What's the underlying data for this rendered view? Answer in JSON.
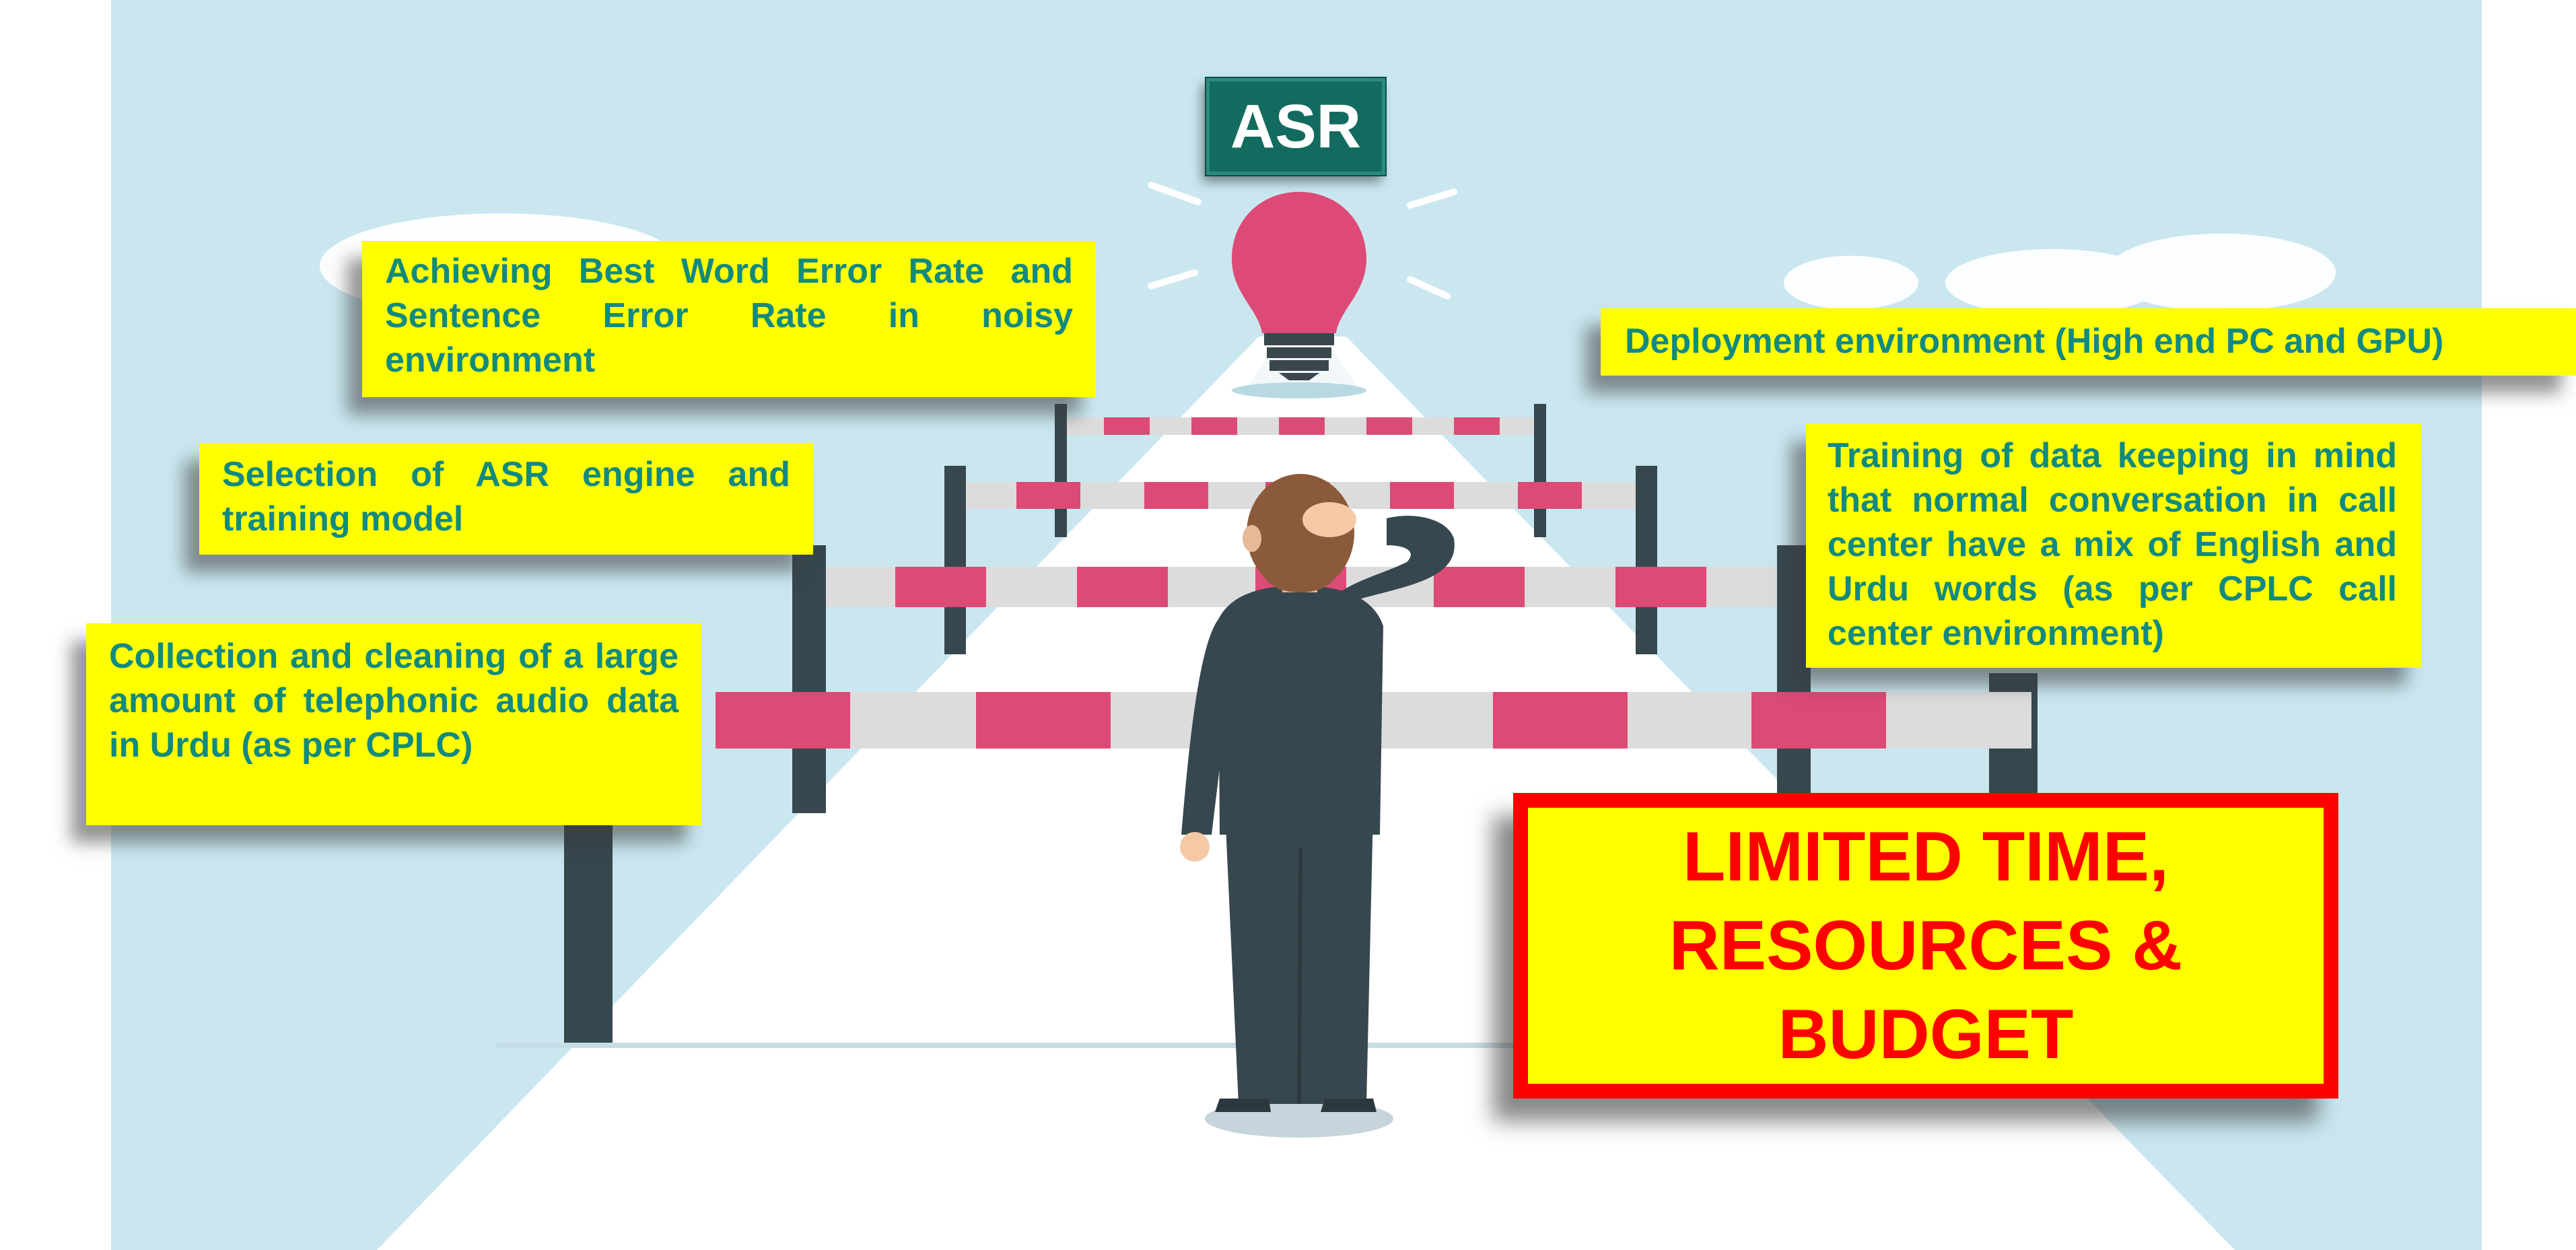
{
  "badge": {
    "label": "ASR"
  },
  "callouts": {
    "achieving": "Achieving Best Word Error Rate and Sentence Error Rate in noisy environment",
    "deployment": "Deployment environment (High end PC and GPU)",
    "selection": "Selection of ASR engine and training model",
    "training": "Training of data keeping in mind that normal conversation in call center have a mix of English and Urdu words (as per CPLC call center environment)",
    "collection": "Collection and cleaning of a large amount of telephonic audio data in Urdu (as per CPLC)"
  },
  "warning": {
    "text": "LIMITED TIME,\nRESOURCES &\nBUDGET"
  },
  "colors": {
    "sky": "#cae7f0",
    "road": "#ffffff",
    "callout_bg": "#ffff00",
    "callout_text": "#138a7f",
    "badge_bg": "#136b5f",
    "warning_text": "#ff0000",
    "bulb": "#de4a78",
    "barrier_pink": "#dc4a76",
    "barrier_gray": "#dcdcdc",
    "post": "#36474e",
    "suit": "#37474f"
  },
  "icons": [
    "lightbulb-icon",
    "person-figure",
    "barrier-icon"
  ]
}
